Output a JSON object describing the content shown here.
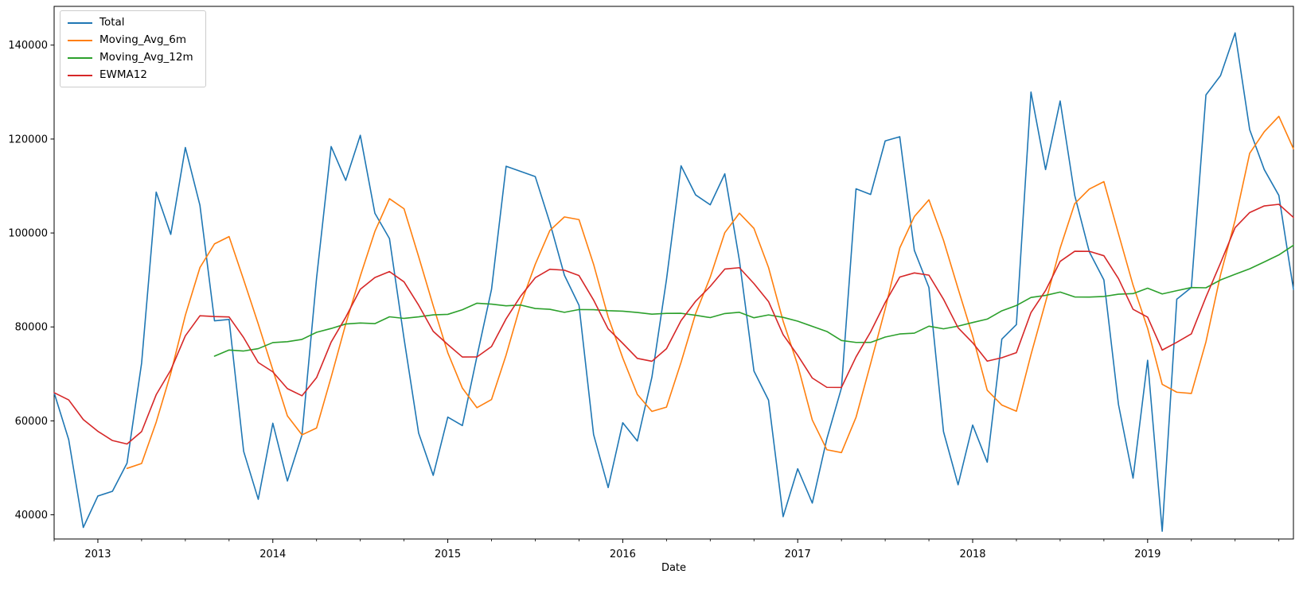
{
  "chart_data": {
    "type": "line",
    "title": "",
    "xlabel": "Date",
    "ylabel": "",
    "grid": false,
    "legend_position": "upper-left",
    "x_start": "2012-10",
    "x_end": "2019-11",
    "frequency": "monthly",
    "x_tick_labels": [
      "2013",
      "2014",
      "2015",
      "2016",
      "2017",
      "2018",
      "2019"
    ],
    "y_ticks": [
      40000,
      60000,
      80000,
      100000,
      120000,
      140000
    ],
    "ylim": [
      34850,
      148250
    ],
    "series": [
      {
        "name": "Total",
        "color": "#1f77b4",
        "kind": "raw",
        "values": [
          66000,
          56000,
          37300,
          44000,
          45000,
          51000,
          72300,
          108700,
          99700,
          118200,
          105900,
          81300,
          81600,
          53500,
          43300,
          59500,
          47200,
          57000,
          90400,
          118400,
          111200,
          120800,
          104200,
          98800,
          77500,
          57400,
          48400,
          60800,
          59000,
          73700,
          88000,
          114200,
          113100,
          112000,
          102200,
          91000,
          84600,
          57100,
          45800,
          59600,
          55700,
          69300,
          90100,
          114300,
          108100,
          106000,
          112600,
          94200,
          70600,
          64400,
          39600,
          49800,
          42500,
          56200,
          67000,
          109400,
          108200,
          119600,
          120500,
          96300,
          88400,
          57700,
          46400,
          59100,
          51200,
          77400,
          80500,
          130000,
          113500,
          128100,
          108000,
          96000,
          90000,
          63500,
          47800,
          72900,
          36500,
          85900,
          88400,
          129400,
          133500,
          142600,
          122000,
          113500,
          108000,
          88000
        ]
      },
      {
        "name": "Moving_Avg_6m",
        "color": "#ff7f0e",
        "kind": "derived",
        "derived": "rolling_mean_6"
      },
      {
        "name": "Moving_Avg_12m",
        "color": "#2ca02c",
        "kind": "derived",
        "derived": "rolling_mean_12"
      },
      {
        "name": "EWMA12",
        "color": "#d62728",
        "kind": "derived",
        "derived": "ewm_span_12_adjust_false"
      }
    ]
  },
  "legend": {
    "items": [
      "Total",
      "Moving_Avg_6m",
      "Moving_Avg_12m",
      "EWMA12"
    ]
  }
}
